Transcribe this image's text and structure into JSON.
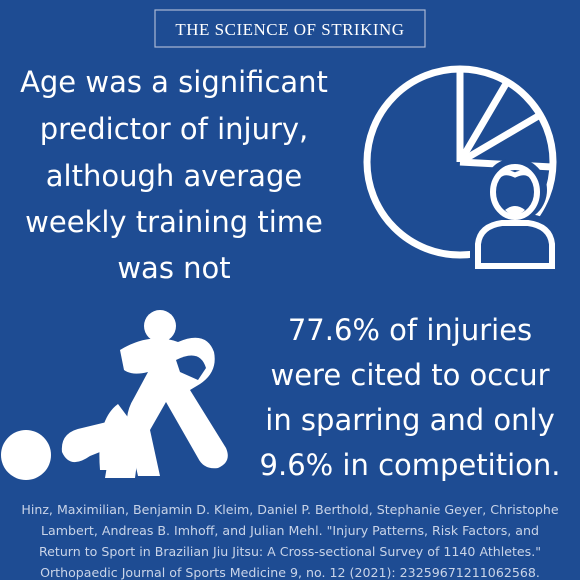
{
  "header": {
    "title": "THE SCIENCE OF STRIKING"
  },
  "statement": {
    "lines": [
      "Age was a significant",
      "predictor of injury,",
      "although average",
      "weekly training time",
      "was not"
    ]
  },
  "stat": {
    "lines": [
      "77.6% of injuries",
      "were cited to occur",
      "in sparring and only",
      "9.6% in competition."
    ]
  },
  "citation": {
    "lines": [
      "Hinz, Maximilian, Benjamin D. Kleim, Daniel P. Berthold, Stephanie Geyer, Christophe",
      "Lambert, Andreas B. Imhoff, and Julian Mehl. \"Injury Patterns, Risk Factors, and",
      "Return to Sport in Brazilian Jiu Jitsu: A Cross-sectional Survey of 1140 Athletes.\"",
      "Orthopaedic Journal of Sports Medicine 9, no. 12 (2021): 23259671211062568."
    ]
  }
}
